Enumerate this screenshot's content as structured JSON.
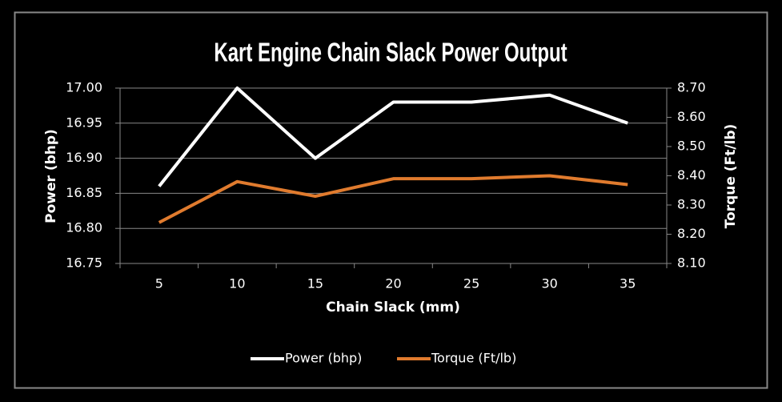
{
  "chart_data": {
    "type": "line",
    "title": "Kart Engine Chain Slack Power Output",
    "x_label": "Chain Slack (mm)",
    "y_label": "Power (bhp)",
    "y2_label": "Torque (Ft/lb)",
    "categories": [
      "5",
      "10",
      "15",
      "20",
      "25",
      "30",
      "35"
    ],
    "series": [
      {
        "name": "Power (bhp)",
        "color": "#ffffff",
        "values": [
          16.86,
          17.0,
          16.9,
          16.98,
          16.98,
          16.99,
          16.95
        ]
      },
      {
        "name": "Torque (Ft/lb)",
        "color": "#e07b2e",
        "axis": "y2",
        "values": [
          8.24,
          8.38,
          8.33,
          8.39,
          8.39,
          8.4,
          8.37
        ]
      }
    ],
    "ylim": [
      16.75,
      17.0
    ],
    "yticks": [
      {
        "value": 16.75,
        "label": "16.75"
      },
      {
        "value": 16.8,
        "label": "16.80"
      },
      {
        "value": 16.85,
        "label": "16.85"
      },
      {
        "value": 16.9,
        "label": "16.90"
      },
      {
        "value": 16.95,
        "label": "16.95"
      },
      {
        "value": 17.0,
        "label": "17.00"
      }
    ],
    "y2lim": [
      8.1,
      8.7
    ],
    "y2ticks": [
      {
        "value": 8.1,
        "label": "8.10"
      },
      {
        "value": 8.2,
        "label": "8.20"
      },
      {
        "value": 8.3,
        "label": "8.30"
      },
      {
        "value": 8.4,
        "label": "8.40"
      },
      {
        "value": 8.5,
        "label": "8.50"
      },
      {
        "value": 8.6,
        "label": "8.60"
      },
      {
        "value": 8.7,
        "label": "8.70"
      }
    ],
    "grid": true,
    "legend": "bottom"
  }
}
